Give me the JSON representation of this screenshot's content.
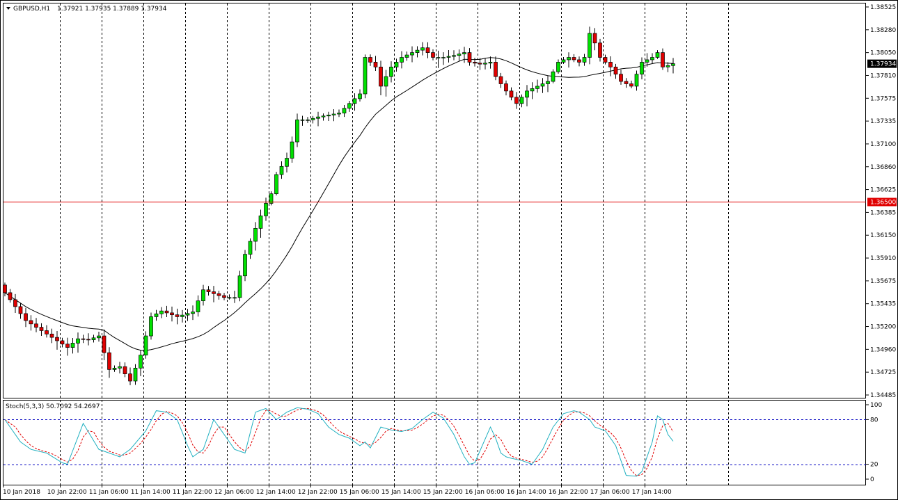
{
  "chart_data": {
    "type": "candlestick",
    "title": "GBPUSD,H1",
    "ohlc_readout": "1.37921 1.37935 1.37889 1.37934",
    "price_axis": {
      "min": 1.34485,
      "max": 1.38525,
      "ticks": [
        "1.38525",
        "1.38280",
        "1.38050",
        "1.37810",
        "1.37575",
        "1.37335",
        "1.37100",
        "1.36860",
        "1.36625",
        "1.36385",
        "1.36150",
        "1.35910",
        "1.35675",
        "1.35435",
        "1.35200",
        "1.34960",
        "1.34725",
        "1.34485"
      ],
      "current_price": "1.37934",
      "current_price_value": 1.37934,
      "hline_value": 1.365,
      "hline_label": "1.36500"
    },
    "time_labels": [
      "10 Jan 2018",
      "10 Jan 22:00",
      "11 Jan 06:00",
      "11 Jan 14:00",
      "11 Jan 22:00",
      "12 Jan 06:00",
      "12 Jan 14:00",
      "12 Jan 22:00",
      "15 Jan 06:00",
      "15 Jan 14:00",
      "15 Jan 22:00",
      "16 Jan 06:00",
      "16 Jan 14:00",
      "16 Jan 22:00",
      "17 Jan 06:00",
      "17 Jan 14:00"
    ],
    "stoch": {
      "label": "Stoch(5,3,3) 50.7092 54.2697",
      "ticks": [
        "100",
        "80",
        "20",
        "0"
      ],
      "levels": [
        80,
        20
      ]
    },
    "colors": {
      "bull": "#00e000",
      "bear": "#e00000",
      "ma": "#000000",
      "hline": "#e00000",
      "stoch_main": "#20b0c0",
      "stoch_signal": "#e00000",
      "level": "#0000c0",
      "grid": "#000000"
    },
    "main_anchors": [
      [
        0,
        1.3555
      ],
      [
        4,
        1.3526
      ],
      [
        8,
        1.3512
      ],
      [
        12,
        1.3498
      ],
      [
        14,
        1.3507
      ],
      [
        16,
        1.3506
      ],
      [
        18,
        1.351
      ],
      [
        20,
        1.3475
      ],
      [
        22,
        1.3478
      ],
      [
        24,
        1.3463
      ],
      [
        26,
        1.349
      ],
      [
        28,
        1.353
      ],
      [
        30,
        1.3536
      ],
      [
        33,
        1.353
      ],
      [
        36,
        1.3535
      ],
      [
        38,
        1.3558
      ],
      [
        42,
        1.355
      ],
      [
        44,
        1.355
      ],
      [
        46,
        1.3595
      ],
      [
        48,
        1.3622
      ],
      [
        50,
        1.3648
      ],
      [
        51,
        1.3658
      ],
      [
        52,
        1.3678
      ],
      [
        54,
        1.3695
      ],
      [
        55,
        1.3712
      ],
      [
        56,
        1.3735
      ],
      [
        58,
        1.3735
      ],
      [
        60,
        1.3738
      ],
      [
        62,
        1.374
      ],
      [
        64,
        1.3742
      ],
      [
        66,
        1.3752
      ],
      [
        68,
        1.3762
      ],
      [
        69,
        1.38
      ],
      [
        71,
        1.379
      ],
      [
        72,
        1.377
      ],
      [
        74,
        1.379
      ],
      [
        76,
        1.38
      ],
      [
        78,
        1.3805
      ],
      [
        80,
        1.381
      ],
      [
        82,
        1.38
      ],
      [
        84,
        1.38
      ],
      [
        86,
        1.3802
      ],
      [
        88,
        1.3805
      ],
      [
        89,
        1.3795
      ],
      [
        91,
        1.3793
      ],
      [
        93,
        1.3795
      ],
      [
        94,
        1.378
      ],
      [
        96,
        1.3765
      ],
      [
        98,
        1.3752
      ],
      [
        100,
        1.3765
      ],
      [
        102,
        1.377
      ],
      [
        104,
        1.3775
      ],
      [
        106,
        1.3795
      ],
      [
        108,
        1.38
      ],
      [
        110,
        1.3795
      ],
      [
        111,
        1.38
      ],
      [
        112,
        1.3825
      ],
      [
        113,
        1.3815
      ],
      [
        114,
        1.38
      ],
      [
        116,
        1.379
      ],
      [
        118,
        1.3775
      ],
      [
        120,
        1.377
      ],
      [
        122,
        1.3795
      ],
      [
        124,
        1.38
      ],
      [
        125,
        1.3805
      ],
      [
        126,
        1.379
      ],
      [
        128,
        1.3793
      ]
    ],
    "stoch_anchors": [
      [
        0,
        80
      ],
      [
        3,
        50
      ],
      [
        5,
        40
      ],
      [
        8,
        35
      ],
      [
        11,
        22
      ],
      [
        12,
        20
      ],
      [
        15,
        75
      ],
      [
        18,
        40
      ],
      [
        20,
        35
      ],
      [
        22,
        30
      ],
      [
        24,
        40
      ],
      [
        27,
        65
      ],
      [
        29,
        92
      ],
      [
        31,
        90
      ],
      [
        33,
        80
      ],
      [
        35,
        45
      ],
      [
        36,
        30
      ],
      [
        38,
        40
      ],
      [
        40,
        80
      ],
      [
        42,
        60
      ],
      [
        44,
        40
      ],
      [
        46,
        35
      ],
      [
        48,
        90
      ],
      [
        50,
        95
      ],
      [
        52,
        80
      ],
      [
        54,
        90
      ],
      [
        56,
        96
      ],
      [
        58,
        94
      ],
      [
        60,
        88
      ],
      [
        62,
        70
      ],
      [
        64,
        60
      ],
      [
        66,
        55
      ],
      [
        68,
        45
      ],
      [
        69,
        50
      ],
      [
        70,
        42
      ],
      [
        72,
        70
      ],
      [
        74,
        66
      ],
      [
        76,
        64
      ],
      [
        78,
        68
      ],
      [
        80,
        80
      ],
      [
        82,
        90
      ],
      [
        84,
        82
      ],
      [
        86,
        60
      ],
      [
        88,
        30
      ],
      [
        89,
        20
      ],
      [
        90,
        22
      ],
      [
        91,
        38
      ],
      [
        93,
        70
      ],
      [
        94,
        55
      ],
      [
        95,
        35
      ],
      [
        96,
        30
      ],
      [
        97,
        28
      ],
      [
        99,
        25
      ],
      [
        101,
        20
      ],
      [
        103,
        40
      ],
      [
        105,
        70
      ],
      [
        107,
        88
      ],
      [
        109,
        92
      ],
      [
        110,
        90
      ],
      [
        112,
        80
      ],
      [
        113,
        70
      ],
      [
        115,
        65
      ],
      [
        117,
        45
      ],
      [
        118,
        25
      ],
      [
        119,
        5
      ],
      [
        121,
        4
      ],
      [
        122,
        10
      ],
      [
        124,
        50
      ],
      [
        125,
        85
      ],
      [
        126,
        80
      ],
      [
        127,
        60
      ],
      [
        128,
        51
      ]
    ]
  }
}
